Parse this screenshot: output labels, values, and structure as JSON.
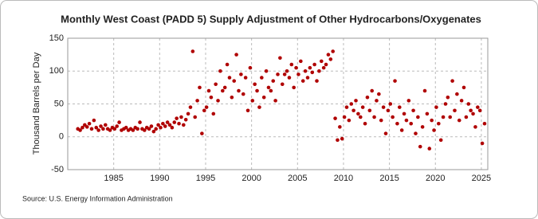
{
  "chart_data": {
    "type": "scatter",
    "title": "Monthly West Coast (PADD 5) Supply Adjustment of Other Hydrocarbons/Oxygenates",
    "y_label": "Thousand Barrels per Day",
    "source": "Source: U.S. Energy Information Administration",
    "color": "#b00000",
    "grid": true,
    "xlim": [
      1980,
      2025.7
    ],
    "ylim": [
      -50,
      150
    ],
    "xticks": [
      1985,
      1990,
      1995,
      2000,
      2005,
      2010,
      2015,
      2020,
      2025
    ],
    "yticks": [
      -50,
      0,
      50,
      100,
      150
    ],
    "x": [
      1981.1,
      1981.35,
      1981.6,
      1981.85,
      1982.1,
      1982.35,
      1982.6,
      1982.85,
      1983.1,
      1983.35,
      1983.6,
      1983.85,
      1984.1,
      1984.35,
      1984.6,
      1984.85,
      1985.1,
      1985.35,
      1985.6,
      1985.85,
      1986.1,
      1986.35,
      1986.6,
      1986.85,
      1987.1,
      1987.35,
      1987.6,
      1987.85,
      1988.1,
      1988.35,
      1988.6,
      1988.85,
      1989.1,
      1989.35,
      1989.6,
      1989.85,
      1990.1,
      1990.35,
      1990.6,
      1990.85,
      1991.1,
      1991.35,
      1991.6,
      1991.85,
      1992.1,
      1992.35,
      1992.6,
      1992.85,
      1993.1,
      1993.35,
      1993.6,
      1993.85,
      1994.1,
      1994.35,
      1994.6,
      1994.85,
      1995.1,
      1995.35,
      1995.6,
      1995.85,
      1996.1,
      1996.35,
      1996.6,
      1996.85,
      1997.1,
      1997.35,
      1997.6,
      1997.85,
      1998.1,
      1998.35,
      1998.6,
      1998.85,
      1999.1,
      1999.35,
      1999.6,
      1999.85,
      2000.1,
      2000.35,
      2000.6,
      2000.85,
      2001.1,
      2001.35,
      2001.6,
      2001.85,
      2002.1,
      2002.35,
      2002.6,
      2002.85,
      2003.1,
      2003.35,
      2003.6,
      2003.85,
      2004.1,
      2004.35,
      2004.6,
      2004.85,
      2005.1,
      2005.35,
      2005.6,
      2005.85,
      2006.1,
      2006.35,
      2006.6,
      2006.85,
      2007.1,
      2007.35,
      2007.6,
      2007.85,
      2008.1,
      2008.35,
      2008.6,
      2008.85,
      2009.1,
      2009.35,
      2009.6,
      2009.85,
      2010.1,
      2010.35,
      2010.6,
      2010.85,
      2011.1,
      2011.35,
      2011.6,
      2011.85,
      2012.1,
      2012.35,
      2012.6,
      2012.85,
      2013.1,
      2013.35,
      2013.6,
      2013.85,
      2014.1,
      2014.35,
      2014.6,
      2014.85,
      2015.1,
      2015.35,
      2015.6,
      2015.85,
      2016.1,
      2016.35,
      2016.6,
      2016.85,
      2017.1,
      2017.35,
      2017.6,
      2017.85,
      2018.1,
      2018.35,
      2018.6,
      2018.85,
      2019.1,
      2019.35,
      2019.6,
      2019.85,
      2020.1,
      2020.35,
      2020.6,
      2020.85,
      2021.1,
      2021.35,
      2021.6,
      2021.85,
      2022.1,
      2022.35,
      2022.6,
      2022.85,
      2023.1,
      2023.35,
      2023.6,
      2023.85,
      2024.1,
      2024.35,
      2024.6,
      2024.85,
      2025.1,
      2025.35
    ],
    "values": [
      12,
      10,
      14,
      18,
      15,
      20,
      12,
      25,
      14,
      10,
      16,
      12,
      18,
      12,
      10,
      14,
      12,
      16,
      22,
      10,
      12,
      14,
      10,
      12,
      10,
      14,
      12,
      22,
      12,
      10,
      14,
      12,
      16,
      8,
      12,
      18,
      14,
      20,
      16,
      22,
      18,
      14,
      22,
      28,
      20,
      30,
      18,
      26,
      35,
      45,
      130,
      30,
      55,
      75,
      5,
      40,
      45,
      70,
      60,
      35,
      80,
      55,
      100,
      70,
      75,
      110,
      90,
      60,
      85,
      125,
      70,
      95,
      65,
      90,
      40,
      105,
      55,
      80,
      70,
      45,
      90,
      60,
      100,
      75,
      70,
      85,
      55,
      95,
      120,
      80,
      95,
      100,
      90,
      110,
      75,
      105,
      95,
      115,
      85,
      100,
      90,
      105,
      98,
      110,
      85,
      100,
      115,
      105,
      110,
      125,
      118,
      130,
      28,
      -5,
      15,
      -3,
      30,
      45,
      25,
      50,
      40,
      55,
      35,
      30,
      45,
      20,
      60,
      40,
      70,
      30,
      55,
      65,
      25,
      45,
      5,
      40,
      50,
      30,
      85,
      20,
      45,
      10,
      35,
      25,
      55,
      20,
      40,
      5,
      30,
      -15,
      15,
      70,
      35,
      -18,
      25,
      10,
      45,
      20,
      -5,
      30,
      50,
      60,
      30,
      85,
      40,
      65,
      25,
      55,
      75,
      30,
      50,
      40,
      35,
      15,
      45,
      40,
      -10,
      20
    ]
  }
}
